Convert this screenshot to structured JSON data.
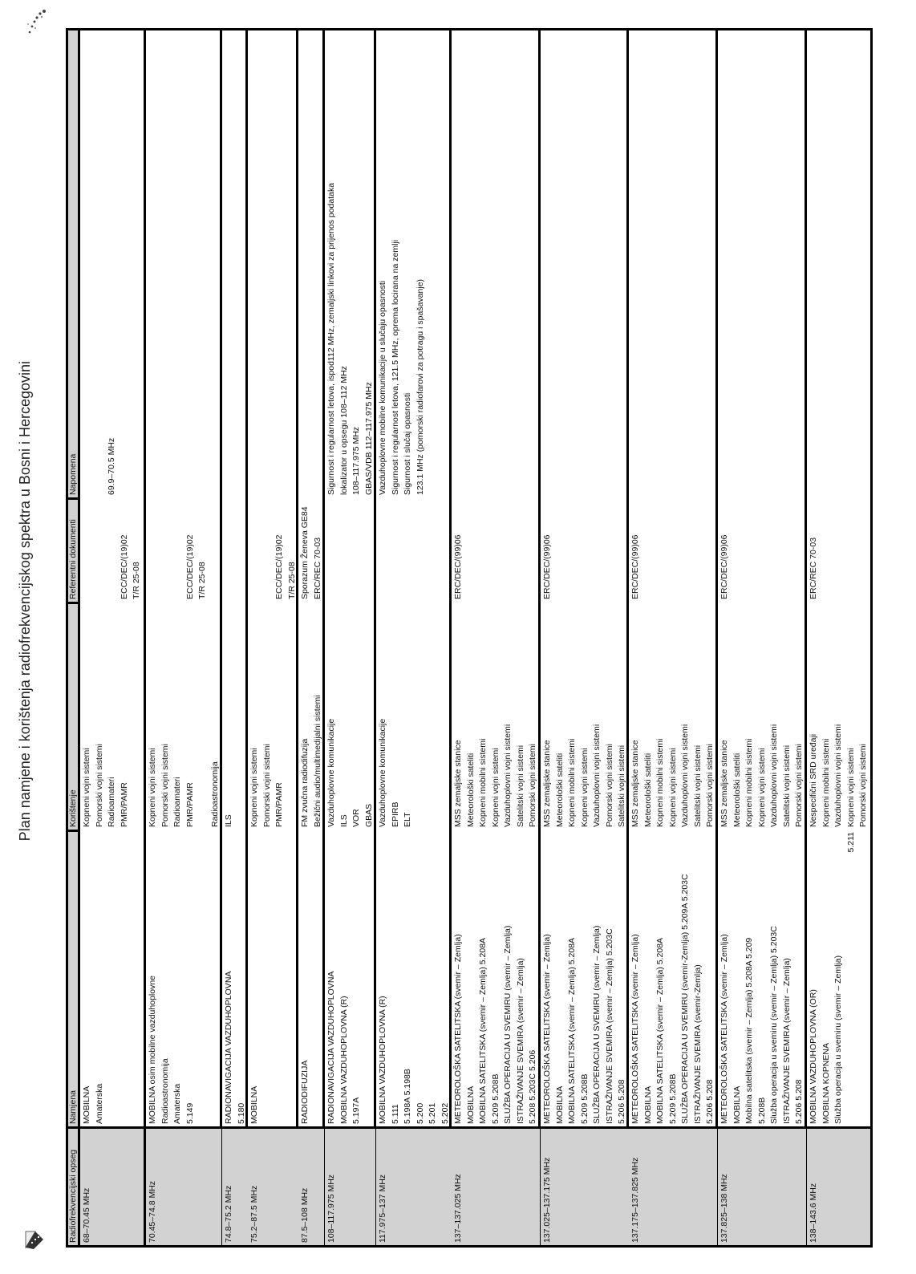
{
  "title": "Plan namjene i korištenja radiofrekvencijskog spektra u Bosni i Hercegovini",
  "icons": {
    "top": "scanner-dots-icon",
    "bottom": "pencil-edit-icon"
  },
  "colors": {
    "header_bg": "#d2d2d2",
    "border": "#000000"
  },
  "table": {
    "headers": [
      "Radiofrekvencijski opseg",
      "Namjena",
      "Korištenje",
      "Referentni dokumenti",
      "Napomena"
    ],
    "rows": [
      {
        "opseg": "68–70.45 MHz",
        "namjena": [
          "MOBILNA",
          "Amaterska"
        ],
        "koristenje": [
          "Kopneni vojni sistemi",
          "Pomorski vojni sistemi",
          "Radioamateri",
          "PMR/PAMR"
        ],
        "ref": [
          "ECC/DEC/(19)02",
          "T/R 25-08"
        ],
        "napomena": [
          "69.9–70.5 MHz"
        ]
      },
      {
        "opseg": "70.45–74.8 MHz",
        "namjena": [
          "MOBILNA osim mobilne vazduhoplovne",
          "Radioastronomija",
          "Amaterska",
          "5.149"
        ],
        "koristenje": [
          "Kopneni vojni sistemi",
          "Pomorski vojni sistemi",
          "Radioamateri",
          "PMR/PAMR",
          "Radioastronomija"
        ],
        "ref": [
          "ECC/DEC/(19)02",
          "T/R 25-08"
        ],
        "napomena": []
      },
      {
        "opseg": "74.8–75.2 MHz",
        "namjena": [
          "RADIONAVIGACIJA VAZDUHOPLOVNA",
          "5.180"
        ],
        "koristenje": [
          "ILS"
        ],
        "ref": [],
        "napomena": []
      },
      {
        "opseg": "75.2–87.5 MHz",
        "namjena": [
          "MOBILNA"
        ],
        "koristenje": [
          "Kopneni vojni sistemi",
          "Pomorski vojni sistemi",
          "PMR/PAMR"
        ],
        "ref": [
          "ECC/DEC/(19)02",
          "T/R 25-08"
        ],
        "napomena": []
      },
      {
        "opseg": "87.5–108 MHz",
        "namjena": [
          "RADIODIFUZIJA"
        ],
        "koristenje": [
          "FM zvučna radiodifuzija",
          "Bežični audio/multimedijalni sistemi"
        ],
        "ref": [
          "Sporazum Ženeva GE84",
          "ERC/REC 70-03"
        ],
        "napomena": []
      },
      {
        "opseg": "108–117.975 MHz",
        "namjena": [
          "RADIONAVIGACIJA VAZDUHOPLOVNA",
          "MOBILNA VAZDUHOPLOVNA (R)",
          "5.197A"
        ],
        "koristenje": [
          "Vazduhoplovne komunikacije",
          "ILS",
          "VOR",
          "GBAS"
        ],
        "ref": [],
        "napomena": [
          "Sigurnost i regularnost letova, ispod112 MHz, zemaljski linkovi za prijenos podataka",
          "lokalizator u opsegu 108–112 MHz",
          "108–117.975 MHz",
          "GBAS/VDB 112–117.975 MHz"
        ]
      },
      {
        "opseg": "117.975–137 MHz",
        "namjena": [
          "MOBILNA VAZDUHOPLOVNA (R)",
          "5.111",
          "5.198A 5.198B",
          "5.200",
          "5.201",
          "5.202"
        ],
        "koristenje": [
          "Vazduhoplovne komunikacije",
          "EPIRB",
          "ELT"
        ],
        "ref": [],
        "napomena": [
          "Vazduhoplovne mobilne komunikacije u slučaju opasnosti",
          "Sigurnost i regularnost letova, 121.5 MHz, oprema locirana na zemlji",
          "Sigurnost i slučaj opasnosti",
          "123.1 MHz (pomorski radiofarovi za potragu i spašavanje)"
        ]
      },
      {
        "opseg": "137–137.025 MHz",
        "namjena": [
          "METEOROLOŠKA SATELITSKA (svemir – Zemlja)",
          "MOBILNA",
          "MOBILNA SATELITSKA (svemir – Zemlja) 5.208A",
          "5.209 5.208B",
          "SLUŽBA OPERACIJA U SVEMIRU (svemir – Zemlja)",
          "ISTRAŽIVANJE SVEMIRA (svemir – Zemlja)",
          "5.208 5.203C  5.206"
        ],
        "koristenje": [
          "MSS zemaljske stanice",
          "Meteorološki sateliti",
          "Kopneni mobilni sistemi",
          "Kopneni vojni sistemi",
          "Vazduhoplovni vojni sistemi",
          "Satelitski vojni sistemi",
          "Pomorski vojni sistemi"
        ],
        "ref": [
          "ERC/DEC/(99)06"
        ],
        "napomena": []
      },
      {
        "opseg": "137.025–137.175 MHz",
        "namjena": [
          "METEOROLOŠKA SATELITSKA (svemir – Zemlja)",
          "MOBILNA",
          "MOBILNA SATELITSKA (svemir – Zemlja) 5.208A",
          "5.209 5.208B",
          "SLUŽBA OPERACIJA U SVEMIRU (svemir – Zemlja)",
          "ISTRAŽIVANJE SVEMIRA (svemir – Zemlja) 5.203C",
          "5.206 5.208"
        ],
        "koristenje": [
          "MSS zemaljske stanice",
          "Meteorološki sateliti",
          "Kopneni mobilni sistemi",
          "Kopneni vojni sistemi",
          "Vazduhoplovni vojni sistemi",
          "Pomorski vojni sistemi",
          "Satelitski vojni sistemi"
        ],
        "ref": [
          "ERC/DEC/(99)06"
        ],
        "napomena": []
      },
      {
        "opseg": "137.175–137.825 MHz",
        "namjena": [
          "METEOROLOŠKA SATELITSKA (svemir – Zemlja)",
          "MOBILNA",
          "MOBILNA SATELITSKA (svemir – Zemlja) 5.208A",
          "5.209 5.208B",
          "SLUŽBA OPERACIJA U SVEMIRU (svemir-Zemlja) 5.209A 5.203C",
          "ISTRAŽIVANJE SVEMIRA (svemir-Zemlja)",
          "5.206 5.208"
        ],
        "koristenje": [
          "MSS zemaljske stanice",
          "Meteorološki sateliti",
          "Kopneni mobilni sistemi",
          "Kopneni vojni sistemi",
          "Vazduhoplovni vojni sistemi",
          "Satelitski vojni sistemi",
          "Pomorski vojni sistemi"
        ],
        "ref": [
          "ERC/DEC/(99)06"
        ],
        "napomena": []
      },
      {
        "opseg": "137.825–138 MHz",
        "namjena": [
          "METEOROLOŠKA SATELITSKA (svemir – Zemlja)",
          "MOBILNA",
          "Mobilna satelitska (svemir – Zemlja) 5.208A 5.209",
          "5.208B",
          "Služba operacija u svemiru (svemir – Zemlja) 5.203C",
          "ISTRAŽIVANJE SVEMIRA (svemir – Zemlja)",
          "5.206 5.208"
        ],
        "koristenje": [
          "MSS zemaljske stanice",
          "Meteorološki sateliti",
          "Kopneni mobilni sistemi",
          "Kopneni vojni sistemi",
          "Vazduhoplovni vojni sistemi",
          "Satelitski vojni sistemi",
          "Pomorski vojni sistemi"
        ],
        "ref": [
          "ERC/DEC/(99)06"
        ],
        "napomena": []
      },
      {
        "opseg": "138–143.6 MHz",
        "namjena": [
          "MOBILNA VAZDUHOPLOVNA (OR)",
          "MOBILNA KOPNENA",
          "Služba operacija u svemiru (svemir – Zemlja)"
        ],
        "koristenje": [
          "Nespecifični SRD uređaji",
          "Kopneni mobilni sistemi",
          "Vazduhoplovni vojni sistemi",
          "Kopneni vojni sistemi",
          "Pomorski vojni sistemi"
        ],
        "koristenje_note": "5.211",
        "ref": [
          "ERC/REC 70-03"
        ],
        "napomena": []
      }
    ]
  }
}
